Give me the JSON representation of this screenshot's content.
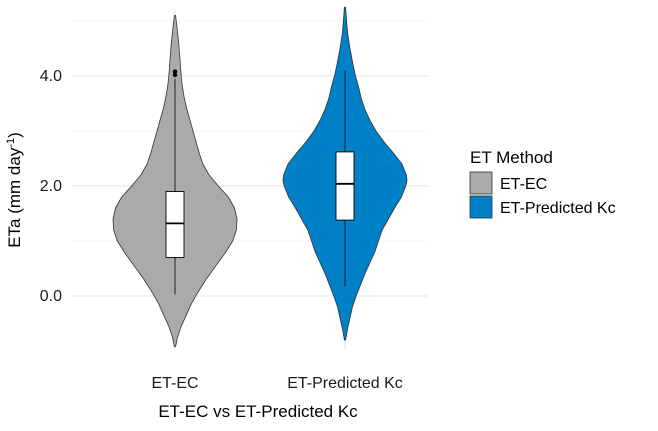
{
  "chart_data": {
    "type": "violin",
    "title": "",
    "xlabel": "ET-EC vs ET-Predicted Kc",
    "ylabel_main": "ETa (mm day",
    "ylabel_sup": "-1",
    "ylabel_close": ")",
    "ylim": [
      -0.95,
      5.3
    ],
    "yticks": [
      0.0,
      2.0,
      4.0
    ],
    "ytick_labels": [
      "0.0",
      "2.0",
      "4.0"
    ],
    "grid": true,
    "legend": {
      "title": "ET Method",
      "position": "right",
      "entries": [
        {
          "label": "ET-EC",
          "color": "#aaaaaa"
        },
        {
          "label": "ET-Predicted Kc",
          "color": "#0080c6"
        }
      ]
    },
    "series": [
      {
        "category": "ET-EC",
        "color": "#aaaaaa",
        "density_profile": [
          [
            -0.92,
            0.01
          ],
          [
            -0.75,
            0.04
          ],
          [
            -0.55,
            0.1
          ],
          [
            -0.35,
            0.18
          ],
          [
            -0.15,
            0.26
          ],
          [
            0.05,
            0.36
          ],
          [
            0.3,
            0.5
          ],
          [
            0.55,
            0.66
          ],
          [
            0.8,
            0.82
          ],
          [
            1.0,
            0.93
          ],
          [
            1.2,
            0.99
          ],
          [
            1.4,
            1.0
          ],
          [
            1.6,
            0.96
          ],
          [
            1.8,
            0.86
          ],
          [
            2.0,
            0.7
          ],
          [
            2.2,
            0.55
          ],
          [
            2.4,
            0.45
          ],
          [
            2.6,
            0.39
          ],
          [
            2.8,
            0.34
          ],
          [
            3.0,
            0.29
          ],
          [
            3.2,
            0.24
          ],
          [
            3.4,
            0.19
          ],
          [
            3.6,
            0.15
          ],
          [
            3.8,
            0.12
          ],
          [
            4.0,
            0.1
          ],
          [
            4.3,
            0.08
          ],
          [
            4.6,
            0.06
          ],
          [
            4.9,
            0.03
          ],
          [
            5.1,
            0.01
          ]
        ],
        "box": {
          "lower_whisker": 0.03,
          "q1": 0.7,
          "median": 1.32,
          "q3": 1.9,
          "upper_whisker": 3.95
        },
        "outliers": [
          4.02,
          4.08
        ]
      },
      {
        "category": "ET-Predicted Kc",
        "color": "#0080c6",
        "density_profile": [
          [
            -0.8,
            0.01
          ],
          [
            -0.6,
            0.04
          ],
          [
            -0.4,
            0.08
          ],
          [
            -0.2,
            0.12
          ],
          [
            0.0,
            0.18
          ],
          [
            0.2,
            0.25
          ],
          [
            0.4,
            0.32
          ],
          [
            0.6,
            0.4
          ],
          [
            0.8,
            0.48
          ],
          [
            1.0,
            0.54
          ],
          [
            1.2,
            0.6
          ],
          [
            1.4,
            0.7
          ],
          [
            1.6,
            0.8
          ],
          [
            1.8,
            0.91
          ],
          [
            2.0,
            0.98
          ],
          [
            2.1,
            1.0
          ],
          [
            2.2,
            0.99
          ],
          [
            2.4,
            0.92
          ],
          [
            2.6,
            0.78
          ],
          [
            2.8,
            0.63
          ],
          [
            3.0,
            0.5
          ],
          [
            3.2,
            0.4
          ],
          [
            3.4,
            0.32
          ],
          [
            3.6,
            0.26
          ],
          [
            3.8,
            0.22
          ],
          [
            4.0,
            0.17
          ],
          [
            4.2,
            0.13
          ],
          [
            4.5,
            0.08
          ],
          [
            4.8,
            0.04
          ],
          [
            5.1,
            0.02
          ],
          [
            5.25,
            0.01
          ]
        ],
        "box": {
          "lower_whisker": 0.18,
          "q1": 1.38,
          "median": 2.04,
          "q3": 2.62,
          "upper_whisker": 4.1
        },
        "outliers": []
      }
    ]
  }
}
